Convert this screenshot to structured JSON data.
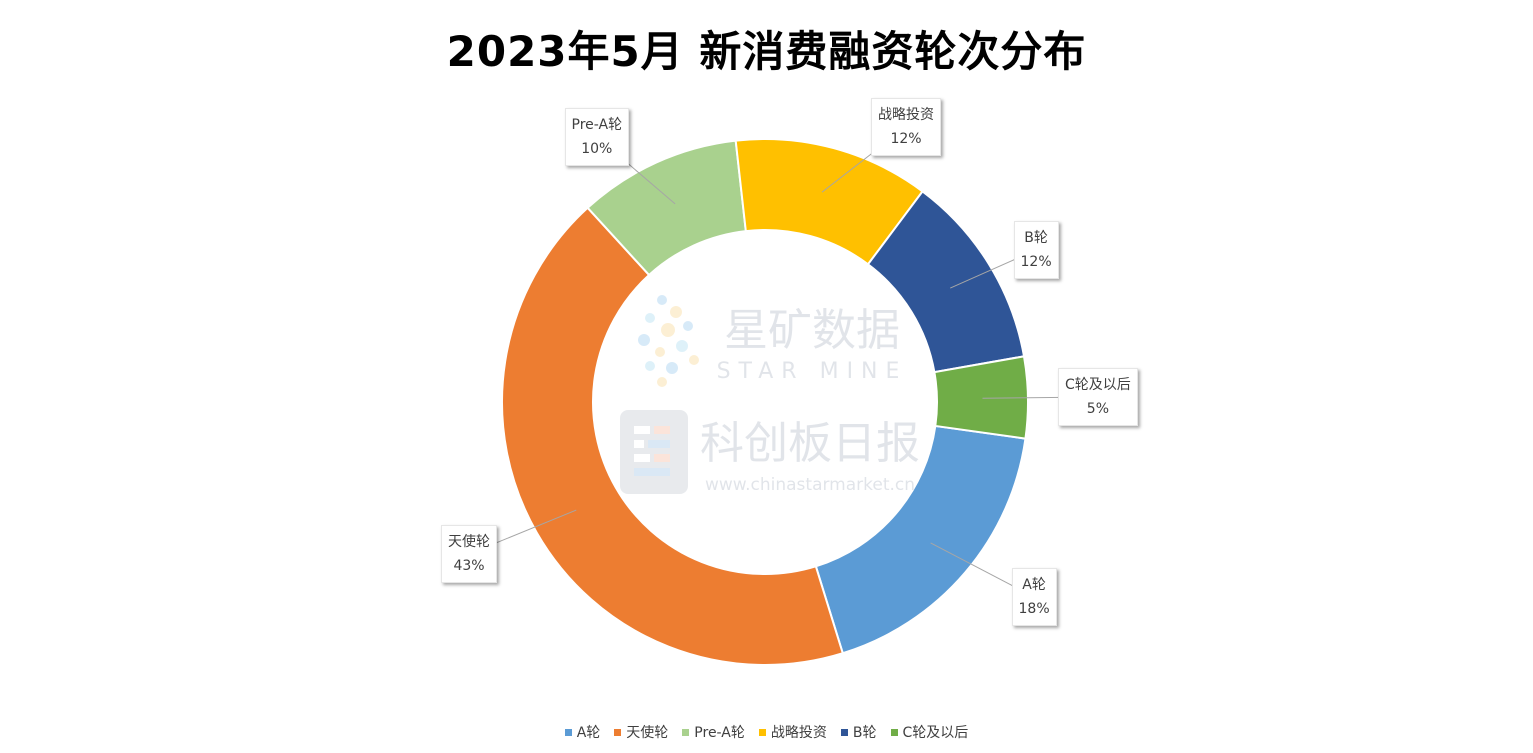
{
  "chart_data": {
    "type": "pie",
    "title": "2023年5月 新消费融资轮次分布",
    "categories": [
      "A轮",
      "天使轮",
      "Pre-A轮",
      "战略投资",
      "B轮",
      "C轮及以后"
    ],
    "values": [
      18,
      43,
      10,
      12,
      12,
      5
    ],
    "value_labels": [
      "18%",
      "43%",
      "10%",
      "12%",
      "12%",
      "5%"
    ],
    "colors": [
      "#5B9BD5",
      "#ED7D31",
      "#A9D18E",
      "#FFC000",
      "#2F5597",
      "#70AD47"
    ],
    "legend_position": "bottom",
    "donut": true
  },
  "watermark": {
    "line1": "星矿数据",
    "line2": "STAR MINE",
    "line3": "科创板日报",
    "line4": "www.chinastarmarket.cn"
  }
}
